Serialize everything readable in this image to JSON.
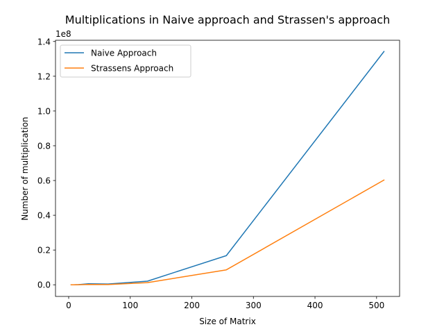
{
  "chart_data": {
    "type": "line",
    "title": "Multiplications in Naive approach and Strassen's approach",
    "xlabel": "Size of Matrix",
    "ylabel": "Number of multiplication",
    "y_offset_label": "1e8",
    "xlim": [
      -21.4,
      537.4
    ],
    "ylim": [
      -0.067,
      1.407
    ],
    "xticks": [
      0,
      100,
      200,
      300,
      400,
      500
    ],
    "xtick_labels": [
      "0",
      "100",
      "200",
      "300",
      "400",
      "500"
    ],
    "yticks": [
      0.0,
      0.2,
      0.4,
      0.6,
      0.8,
      1.0,
      1.2,
      1.4
    ],
    "ytick_labels": [
      "0.0",
      "0.2",
      "0.4",
      "0.6",
      "0.8",
      "1.0",
      "1.2",
      "1.4"
    ],
    "grid": false,
    "legend_position": "upper-left",
    "x": [
      4,
      8,
      16,
      32,
      64,
      128,
      256,
      512
    ],
    "series": [
      {
        "name": "Naive Approach",
        "color": "#1f77b4",
        "values": [
          1.12e-05,
          8.96e-05,
          0.0007168,
          0.0057344,
          0.0045875,
          0.0209715,
          0.1677722,
          1.3421773
        ]
      },
      {
        "name": "Strassens Approach",
        "color": "#ff7f0e",
        "values": [
          4.9e-06,
          3.43e-05,
          0.0002401,
          0.0016807,
          0.0011765,
          0.0125,
          0.086,
          0.6025
        ]
      }
    ]
  }
}
